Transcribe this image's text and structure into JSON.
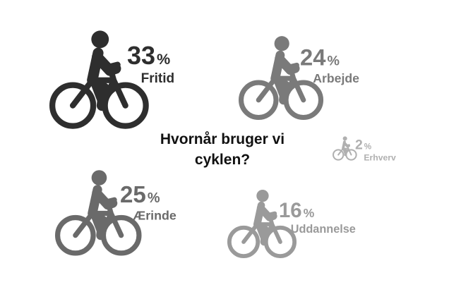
{
  "chart_data": {
    "type": "pictogram",
    "title": "Hvornår bruger vi cyklen?",
    "categories": [
      "Fritid",
      "Arbejde",
      "Ærinde",
      "Uddannelse",
      "Erhverv"
    ],
    "values": [
      33,
      24,
      25,
      16,
      2
    ],
    "value_labels": [
      "33%",
      "24%",
      "25%",
      "16%",
      "2%"
    ],
    "colors": [
      "#2e2e2e",
      "#7a7a7a",
      "#6a6a6a",
      "#9a9a9a",
      "#b0b0b0"
    ]
  }
}
